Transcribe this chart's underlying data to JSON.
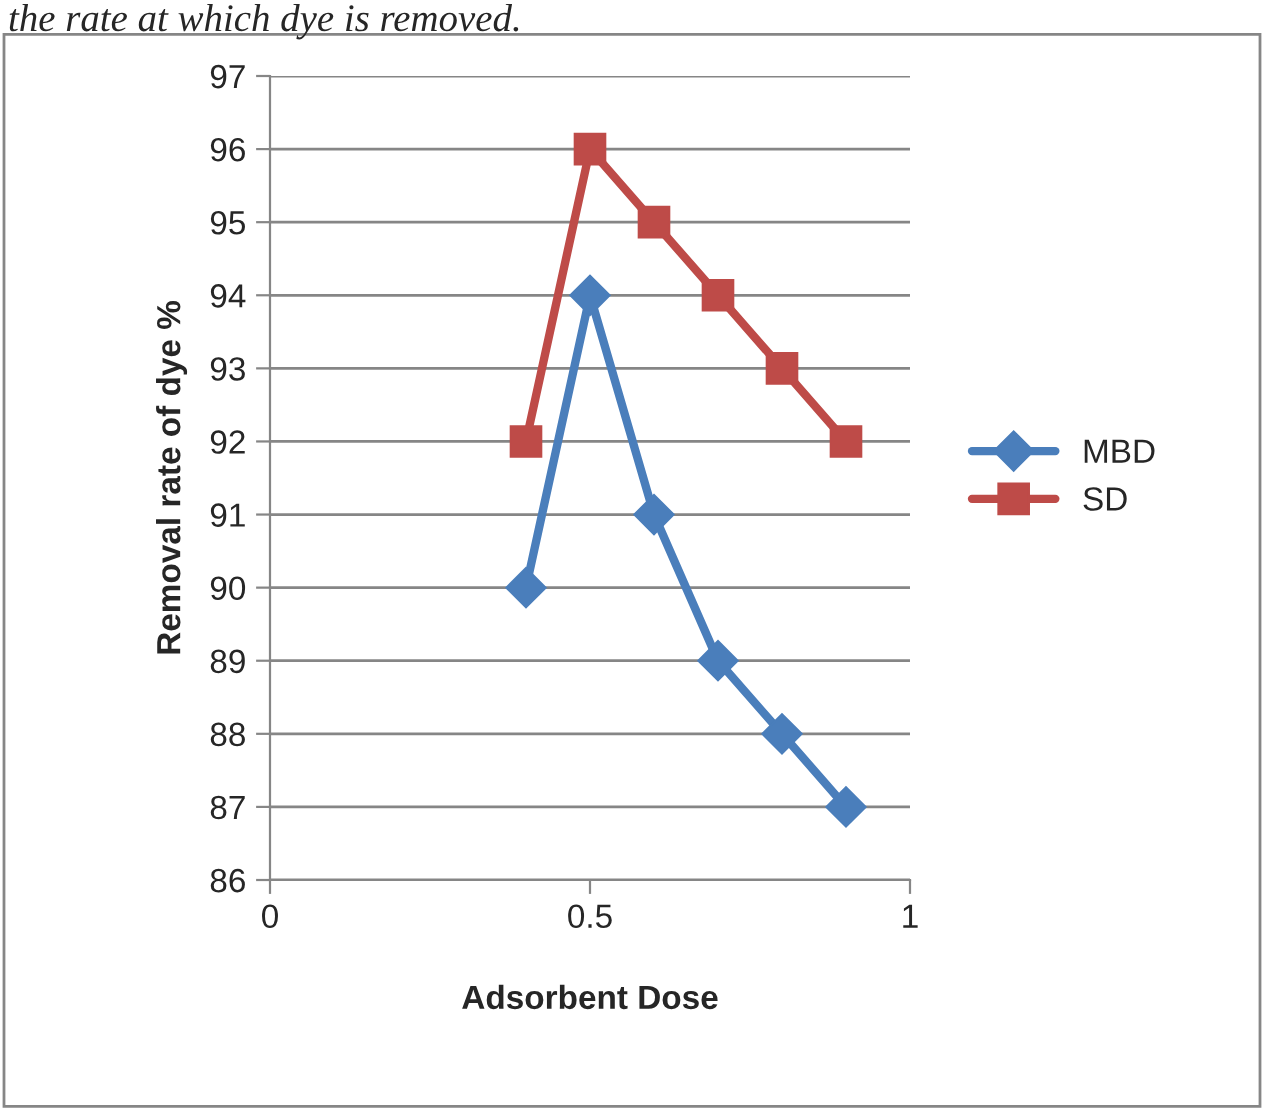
{
  "chart_data": {
    "type": "line",
    "xlabel": "Adsorbent Dose",
    "ylabel": "Removal rate of dye %",
    "annotations": [
      "the rate at which dye is removed."
    ],
    "series": [
      {
        "name": "MBD",
        "color": "#4a7ebb",
        "marker": "diamond",
        "x": [
          0.4,
          0.5,
          0.6,
          0.7,
          0.8,
          0.9
        ],
        "values": [
          90,
          94,
          91,
          89,
          88,
          87
        ]
      },
      {
        "name": "SD",
        "color": "#be4b48",
        "marker": "square",
        "x": [
          0.4,
          0.5,
          0.6,
          0.7,
          0.8,
          0.9
        ],
        "values": [
          92,
          96,
          95,
          94,
          93,
          92
        ]
      }
    ],
    "xlim": [
      0,
      1
    ],
    "xticks": [
      0,
      0.5,
      1
    ],
    "ylim": [
      86,
      97
    ],
    "yticks": [
      86,
      87,
      88,
      89,
      90,
      91,
      92,
      93,
      94,
      95,
      96,
      97
    ],
    "grid": "y",
    "legend": "right",
    "line_style": "solid"
  }
}
